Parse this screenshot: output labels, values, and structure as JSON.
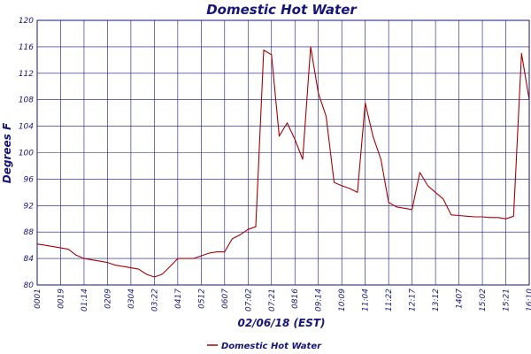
{
  "chart_data": {
    "type": "line",
    "title": "Domestic Hot Water",
    "xlabel": "02/06/18 (EST)",
    "ylabel": "Degrees F",
    "ylim": [
      80,
      120
    ],
    "yticks": [
      80,
      84,
      88,
      92,
      96,
      100,
      104,
      108,
      112,
      116,
      120
    ],
    "xlim": [
      "00:01",
      "16:10"
    ],
    "xticks": [
      "0001",
      "0019",
      "01:14",
      "0209",
      "0304",
      "03:22",
      "0417",
      "0512",
      "0607",
      "07:02",
      "07:21",
      "0816",
      "09:14",
      "10:09",
      "11:04",
      "11:22",
      "12:17",
      "13:12",
      "1407",
      "15:02",
      "15:21",
      "16:10"
    ],
    "grid": true,
    "legend_position": "bottom",
    "colors": {
      "series": "#a80000",
      "grid": "#15157a",
      "text": "#15157a"
    },
    "series": [
      {
        "name": "Domestic Hot Water",
        "x": [
          0,
          0.33,
          0.67,
          1,
          1.33,
          1.67,
          2,
          2.33,
          2.67,
          3,
          3.33,
          3.67,
          4,
          4.33,
          4.67,
          5,
          5.33,
          5.67,
          6,
          6.33,
          6.67,
          7,
          7.33,
          7.67,
          8,
          8.33,
          8.67,
          9,
          9.33,
          9.67,
          10,
          10.33,
          10.67,
          11,
          11.33,
          11.67,
          12,
          12.33,
          12.67,
          13,
          13.33,
          13.67,
          14,
          14.33,
          14.67,
          15,
          15.33,
          15.67,
          16,
          16.33,
          16.67,
          17,
          17.33,
          17.67,
          18,
          18.33,
          18.67,
          19,
          19.33,
          19.67,
          20,
          20.33,
          20.67,
          21
        ],
        "values": [
          86.2,
          86.0,
          85.8,
          85.6,
          85.4,
          84.5,
          84.0,
          83.8,
          83.6,
          83.4,
          83.0,
          82.8,
          82.6,
          82.4,
          81.6,
          81.2,
          81.6,
          82.8,
          84.0,
          84.0,
          84.0,
          84.4,
          84.8,
          85.0,
          85.0,
          87.0,
          87.6,
          88.4,
          88.8,
          115.5,
          114.8,
          102.5,
          104.5,
          102.0,
          99.0,
          116.0,
          109.0,
          105.5,
          95.5,
          95.0,
          94.6,
          94.0,
          107.5,
          102.5,
          99.0,
          92.5,
          91.8,
          91.6,
          91.4,
          97.0,
          95.0,
          94.0,
          93.0,
          90.6,
          90.5,
          90.4,
          90.3,
          90.3,
          90.2,
          90.2,
          90.0,
          90.4,
          115.0,
          108.0
        ]
      }
    ]
  }
}
